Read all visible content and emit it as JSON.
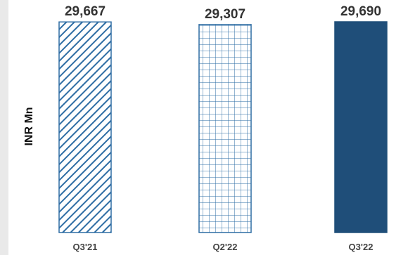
{
  "chart_data": {
    "type": "bar",
    "categories": [
      "Q3'21",
      "Q2'22",
      "Q3'22"
    ],
    "values": [
      29667,
      29307,
      29690
    ],
    "value_labels": [
      "29,667",
      "29,307",
      "29,690"
    ],
    "ylabel": "INR Mn",
    "xlabel": "",
    "title": "",
    "grid": false,
    "legend": "none",
    "bar_styles": [
      "diagonal-hatch",
      "grid-hatch",
      "solid"
    ],
    "colors": {
      "bar_stroke": "#2e6da4",
      "bar_fill_solid": "#1f4e79",
      "hatch": "#2e6da4"
    }
  }
}
